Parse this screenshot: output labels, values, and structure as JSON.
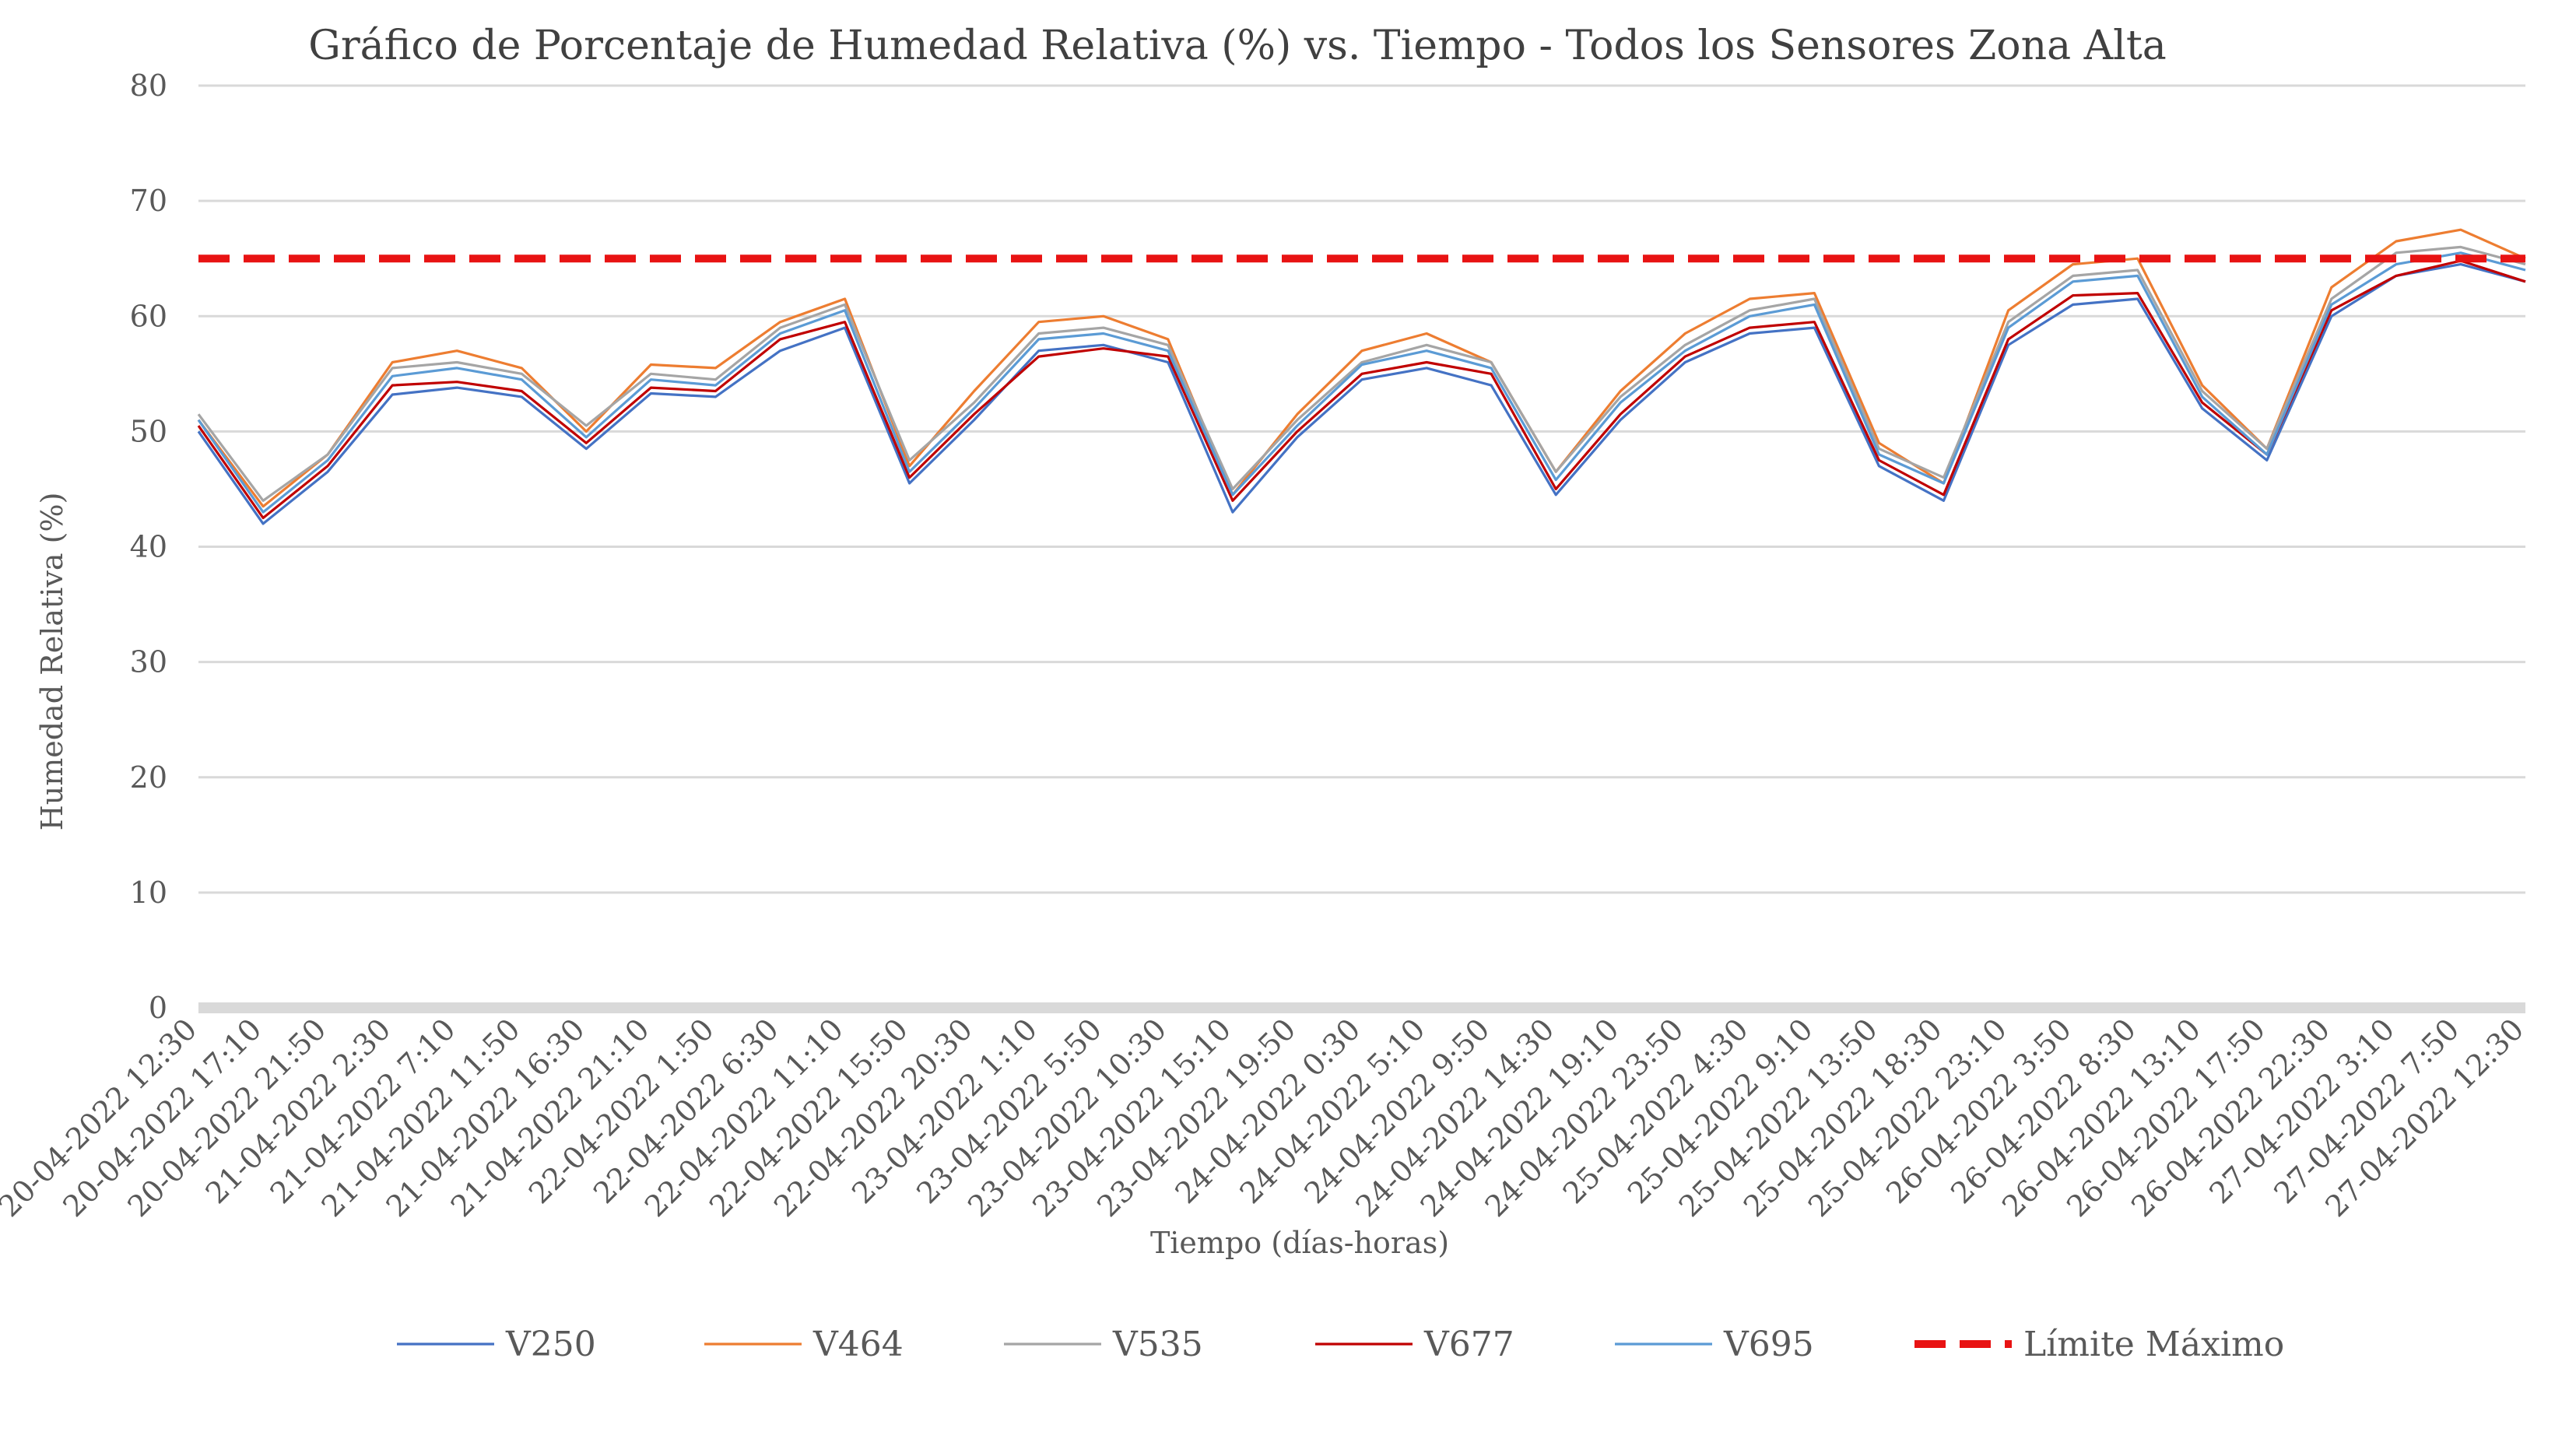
{
  "chart_data": {
    "type": "line",
    "title": "Gráfico de Porcentaje de Humedad Relativa (%) vs. Tiempo - Todos los Sensores Zona Alta",
    "xlabel": "Tiempo (días-horas)",
    "ylabel": "Humedad Relativa (%)",
    "ylim": [
      0,
      80
    ],
    "yticks": [
      0,
      10,
      20,
      30,
      40,
      50,
      60,
      70,
      80
    ],
    "grid": true,
    "legend_position": "bottom",
    "categories": [
      "20-04-2022 12:30",
      "20-04-2022 17:10",
      "20-04-2022 21:50",
      "21-04-2022 2:30",
      "21-04-2022 7:10",
      "21-04-2022 11:50",
      "21-04-2022 16:30",
      "21-04-2022 21:10",
      "22-04-2022 1:50",
      "22-04-2022 6:30",
      "22-04-2022 11:10",
      "22-04-2022 15:50",
      "22-04-2022 20:30",
      "23-04-2022 1:10",
      "23-04-2022 5:50",
      "23-04-2022 10:30",
      "23-04-2022 15:10",
      "23-04-2022 19:50",
      "24-04-2022 0:30",
      "24-04-2022 5:10",
      "24-04-2022 9:50",
      "24-04-2022 14:30",
      "24-04-2022 19:10",
      "24-04-2022 23:50",
      "25-04-2022 4:30",
      "25-04-2022 9:10",
      "25-04-2022 13:50",
      "25-04-2022 18:30",
      "25-04-2022 23:10",
      "26-04-2022 3:50",
      "26-04-2022 8:30",
      "26-04-2022 13:10",
      "26-04-2022 17:50",
      "26-04-2022 22:30",
      "27-04-2022 3:10",
      "27-04-2022 7:50",
      "27-04-2022 12:30"
    ],
    "series": [
      {
        "name": "V250",
        "color": "#4472C4",
        "dash": false,
        "values": [
          50.0,
          42.0,
          46.5,
          53.2,
          53.8,
          53.0,
          48.5,
          53.3,
          53.0,
          57.0,
          59.0,
          45.5,
          51.0,
          57.0,
          57.5,
          56.0,
          43.0,
          49.5,
          54.5,
          55.5,
          54.0,
          44.5,
          51.0,
          56.0,
          58.5,
          59.0,
          47.0,
          44.0,
          57.5,
          61.0,
          61.5,
          52.0,
          47.5,
          60.0,
          63.5,
          64.5,
          63.0
        ]
      },
      {
        "name": "V464",
        "color": "#ED7D31",
        "dash": false,
        "values": [
          51.0,
          43.5,
          48.0,
          56.0,
          57.0,
          55.5,
          50.0,
          55.8,
          55.5,
          59.5,
          61.5,
          47.0,
          53.5,
          59.5,
          60.0,
          58.0,
          44.5,
          51.5,
          57.0,
          58.5,
          56.0,
          46.5,
          53.5,
          58.5,
          61.5,
          62.0,
          49.0,
          45.5,
          60.5,
          64.5,
          65.0,
          54.0,
          48.5,
          62.5,
          66.5,
          67.5,
          65.0
        ]
      },
      {
        "name": "V535",
        "color": "#A5A5A5",
        "dash": false,
        "values": [
          51.5,
          44.0,
          48.0,
          55.5,
          56.0,
          55.0,
          50.5,
          55.0,
          54.5,
          59.0,
          61.0,
          47.5,
          52.5,
          58.5,
          59.0,
          57.5,
          45.0,
          51.0,
          56.0,
          57.5,
          56.0,
          46.5,
          53.0,
          57.5,
          60.5,
          61.5,
          48.5,
          46.0,
          59.5,
          63.5,
          64.0,
          53.5,
          48.5,
          61.5,
          65.5,
          66.0,
          64.5
        ]
      },
      {
        "name": "V677",
        "color": "#C00000",
        "dash": false,
        "values": [
          50.5,
          42.5,
          47.0,
          54.0,
          54.3,
          53.5,
          49.0,
          53.8,
          53.5,
          58.0,
          59.5,
          46.0,
          51.5,
          56.5,
          57.2,
          56.5,
          44.0,
          50.0,
          55.0,
          56.0,
          55.0,
          45.0,
          51.5,
          56.5,
          59.0,
          59.5,
          47.5,
          44.5,
          58.0,
          61.8,
          62.0,
          52.5,
          48.0,
          60.5,
          63.5,
          64.8,
          63.0
        ]
      },
      {
        "name": "V695",
        "color": "#5B9BD5",
        "dash": false,
        "values": [
          51.0,
          43.0,
          47.5,
          54.8,
          55.5,
          54.5,
          49.5,
          54.5,
          54.0,
          58.5,
          60.5,
          46.5,
          52.0,
          58.0,
          58.5,
          57.0,
          44.5,
          50.5,
          55.8,
          57.0,
          55.5,
          45.8,
          52.5,
          57.0,
          60.0,
          61.0,
          48.0,
          45.5,
          59.0,
          63.0,
          63.5,
          53.0,
          48.0,
          61.0,
          64.5,
          65.5,
          64.0
        ]
      },
      {
        "name": "Límite Máximo",
        "color": "#E81313",
        "dash": true,
        "values": [
          65,
          65,
          65,
          65,
          65,
          65,
          65,
          65,
          65,
          65,
          65,
          65,
          65,
          65,
          65,
          65,
          65,
          65,
          65,
          65,
          65,
          65,
          65,
          65,
          65,
          65,
          65,
          65,
          65,
          65,
          65,
          65,
          65,
          65,
          65,
          65,
          65
        ]
      }
    ]
  }
}
